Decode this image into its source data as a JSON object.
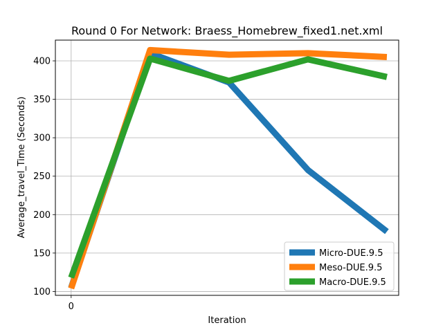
{
  "chart_data": {
    "type": "line",
    "title": "Round 0 For Network: Braess_Homebrew_fixed1.net.xml",
    "xlabel": "Iteration",
    "ylabel": "Average_travel_Time (Seconds)",
    "x": [
      0,
      1,
      2,
      3,
      4
    ],
    "xticks": [
      {
        "value": 0,
        "label": "0"
      }
    ],
    "yticks": [
      100,
      150,
      200,
      250,
      300,
      350,
      400
    ],
    "xlim": [
      -0.2,
      4.15
    ],
    "ylim": [
      95,
      427
    ],
    "grid": true,
    "legend_position": "lower-right",
    "series": [
      {
        "name": "Micro-DUE.9.5",
        "color": "#1f77b4",
        "values": [
          105,
          410,
          372,
          258,
          178
        ]
      },
      {
        "name": "Meso-DUE.9.5",
        "color": "#ff7f0e",
        "values": [
          104,
          414,
          408,
          410,
          405
        ]
      },
      {
        "name": "Macro-DUE.9.5",
        "color": "#2ca02c",
        "values": [
          118,
          403,
          374,
          402,
          379
        ]
      }
    ]
  }
}
